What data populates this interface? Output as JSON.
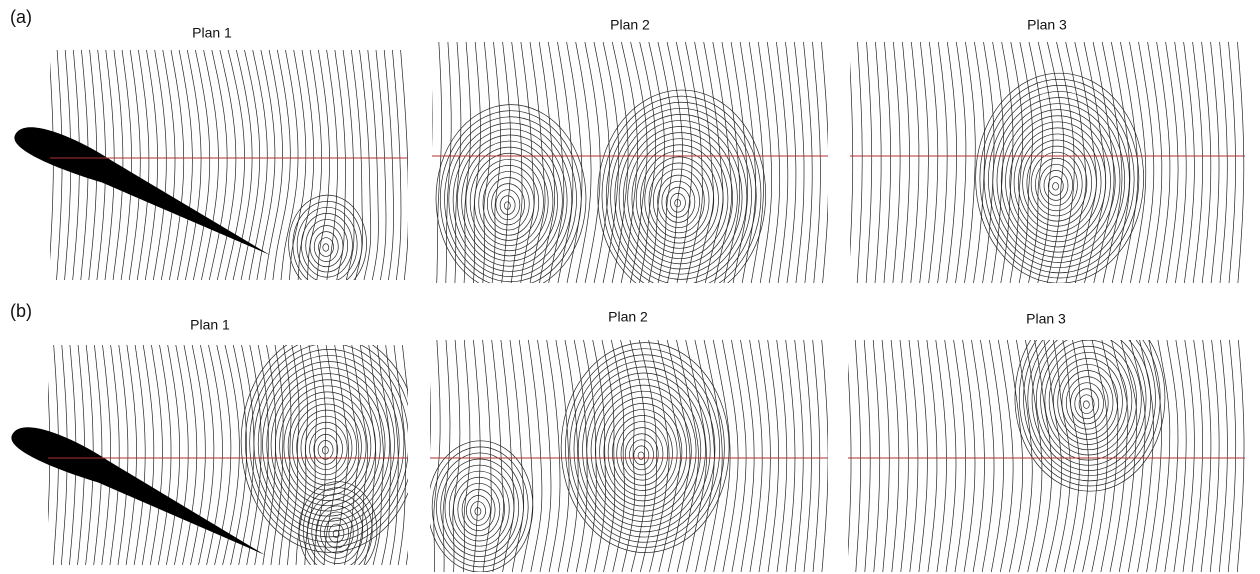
{
  "rows": [
    {
      "label": "(a)",
      "panels": [
        {
          "title": "Plan 1"
        },
        {
          "title": "Plan 2"
        },
        {
          "title": "Plan 3"
        }
      ]
    },
    {
      "label": "(b)",
      "panels": [
        {
          "title": "Plan 1"
        },
        {
          "title": "Plan 2"
        },
        {
          "title": "Plan 3"
        }
      ]
    }
  ]
}
